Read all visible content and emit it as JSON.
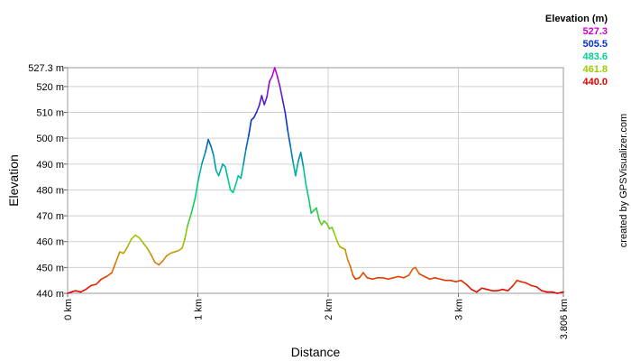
{
  "chart_data": {
    "type": "line",
    "title": "",
    "xlabel": "Distance",
    "ylabel": "Elevation",
    "credit": "created by GPSVisualizer.com",
    "x_unit": "km",
    "y_unit": "m",
    "xlim": [
      0,
      3.806
    ],
    "ylim": [
      440.0,
      527.3
    ],
    "x_ticks": [
      {
        "value": 0,
        "label": "0 km"
      },
      {
        "value": 1,
        "label": "1 km"
      },
      {
        "value": 2,
        "label": "2 km"
      },
      {
        "value": 3,
        "label": "3 km"
      },
      {
        "value": 3.806,
        "label": "3.806 km"
      }
    ],
    "y_ticks": [
      {
        "value": 440,
        "label": "440 m"
      },
      {
        "value": 450,
        "label": "450 m"
      },
      {
        "value": 460,
        "label": "460 m"
      },
      {
        "value": 470,
        "label": "470 m"
      },
      {
        "value": 480,
        "label": "480 m"
      },
      {
        "value": 490,
        "label": "490 m"
      },
      {
        "value": 500,
        "label": "500 m"
      },
      {
        "value": 510,
        "label": "510 m"
      },
      {
        "value": 520,
        "label": "520 m"
      },
      {
        "value": 527.3,
        "label": "527.3 m"
      }
    ],
    "grid": true,
    "legend": {
      "position": "top-right",
      "title": "Elevation (m)",
      "entries": [
        {
          "label": "527.3",
          "color": "#cc00cc"
        },
        {
          "label": "505.5",
          "color": "#0033cc"
        },
        {
          "label": "483.6",
          "color": "#00cc99"
        },
        {
          "label": "461.8",
          "color": "#99cc00"
        },
        {
          "label": "440.0",
          "color": "#dd0000"
        }
      ]
    },
    "series": [
      {
        "values_note": "",
        "points": [
          [
            0.0,
            440.0
          ],
          [
            0.03,
            440.5
          ],
          [
            0.06,
            441.0
          ],
          [
            0.1,
            440.5
          ],
          [
            0.14,
            441.5
          ],
          [
            0.18,
            443.0
          ],
          [
            0.22,
            443.5
          ],
          [
            0.26,
            445.5
          ],
          [
            0.3,
            446.5
          ],
          [
            0.34,
            448.0
          ],
          [
            0.37,
            452.0
          ],
          [
            0.4,
            456.0
          ],
          [
            0.43,
            455.5
          ],
          [
            0.46,
            458.0
          ],
          [
            0.49,
            461.0
          ],
          [
            0.52,
            462.5
          ],
          [
            0.55,
            461.5
          ],
          [
            0.58,
            459.5
          ],
          [
            0.61,
            457.5
          ],
          [
            0.64,
            455.0
          ],
          [
            0.67,
            452.0
          ],
          [
            0.7,
            451.0
          ],
          [
            0.73,
            452.5
          ],
          [
            0.76,
            454.5
          ],
          [
            0.79,
            455.5
          ],
          [
            0.82,
            456.0
          ],
          [
            0.85,
            456.5
          ],
          [
            0.88,
            457.5
          ],
          [
            0.9,
            461.0
          ],
          [
            0.92,
            466.0
          ],
          [
            0.95,
            471.0
          ],
          [
            0.98,
            477.0
          ],
          [
            1.0,
            483.0
          ],
          [
            1.03,
            490.0
          ],
          [
            1.06,
            495.0
          ],
          [
            1.08,
            499.5
          ],
          [
            1.1,
            497.0
          ],
          [
            1.12,
            493.5
          ],
          [
            1.14,
            487.5
          ],
          [
            1.16,
            485.5
          ],
          [
            1.19,
            490.0
          ],
          [
            1.21,
            489.0
          ],
          [
            1.23,
            484.5
          ],
          [
            1.25,
            480.0
          ],
          [
            1.27,
            479.0
          ],
          [
            1.29,
            482.0
          ],
          [
            1.31,
            485.5
          ],
          [
            1.33,
            484.5
          ],
          [
            1.35,
            490.0
          ],
          [
            1.37,
            496.0
          ],
          [
            1.39,
            501.0
          ],
          [
            1.41,
            507.0
          ],
          [
            1.43,
            508.0
          ],
          [
            1.45,
            510.0
          ],
          [
            1.47,
            512.5
          ],
          [
            1.49,
            516.5
          ],
          [
            1.51,
            513.0
          ],
          [
            1.53,
            516.0
          ],
          [
            1.55,
            522.0
          ],
          [
            1.57,
            524.0
          ],
          [
            1.59,
            527.3
          ],
          [
            1.61,
            524.0
          ],
          [
            1.63,
            520.0
          ],
          [
            1.65,
            515.0
          ],
          [
            1.67,
            510.0
          ],
          [
            1.69,
            503.0
          ],
          [
            1.71,
            497.0
          ],
          [
            1.73,
            491.0
          ],
          [
            1.75,
            485.5
          ],
          [
            1.77,
            491.0
          ],
          [
            1.79,
            494.5
          ],
          [
            1.81,
            489.0
          ],
          [
            1.83,
            482.0
          ],
          [
            1.85,
            477.0
          ],
          [
            1.87,
            471.0
          ],
          [
            1.89,
            472.0
          ],
          [
            1.91,
            473.0
          ],
          [
            1.93,
            468.5
          ],
          [
            1.95,
            466.5
          ],
          [
            1.97,
            468.0
          ],
          [
            1.99,
            467.0
          ],
          [
            2.01,
            465.0
          ],
          [
            2.03,
            465.5
          ],
          [
            2.05,
            463.0
          ],
          [
            2.07,
            460.0
          ],
          [
            2.09,
            458.0
          ],
          [
            2.11,
            457.5
          ],
          [
            2.13,
            457.0
          ],
          [
            2.15,
            453.0
          ],
          [
            2.17,
            450.5
          ],
          [
            2.19,
            447.0
          ],
          [
            2.21,
            445.5
          ],
          [
            2.24,
            446.0
          ],
          [
            2.27,
            448.0
          ],
          [
            2.3,
            446.0
          ],
          [
            2.34,
            445.5
          ],
          [
            2.38,
            446.0
          ],
          [
            2.42,
            446.0
          ],
          [
            2.46,
            445.5
          ],
          [
            2.5,
            446.0
          ],
          [
            2.54,
            446.5
          ],
          [
            2.58,
            446.0
          ],
          [
            2.62,
            447.0
          ],
          [
            2.65,
            449.5
          ],
          [
            2.67,
            450.0
          ],
          [
            2.7,
            447.5
          ],
          [
            2.74,
            446.5
          ],
          [
            2.78,
            445.5
          ],
          [
            2.82,
            446.0
          ],
          [
            2.86,
            445.5
          ],
          [
            2.9,
            445.0
          ],
          [
            2.94,
            445.0
          ],
          [
            2.98,
            444.5
          ],
          [
            3.02,
            445.0
          ],
          [
            3.06,
            443.5
          ],
          [
            3.1,
            441.5
          ],
          [
            3.14,
            440.5
          ],
          [
            3.18,
            442.0
          ],
          [
            3.22,
            441.5
          ],
          [
            3.26,
            441.0
          ],
          [
            3.3,
            441.0
          ],
          [
            3.34,
            441.5
          ],
          [
            3.38,
            441.0
          ],
          [
            3.42,
            443.0
          ],
          [
            3.45,
            445.0
          ],
          [
            3.48,
            444.5
          ],
          [
            3.52,
            444.0
          ],
          [
            3.56,
            443.0
          ],
          [
            3.6,
            442.5
          ],
          [
            3.64,
            441.0
          ],
          [
            3.68,
            440.5
          ],
          [
            3.72,
            440.5
          ],
          [
            3.76,
            440.0
          ],
          [
            3.806,
            440.5
          ]
        ]
      }
    ]
  }
}
